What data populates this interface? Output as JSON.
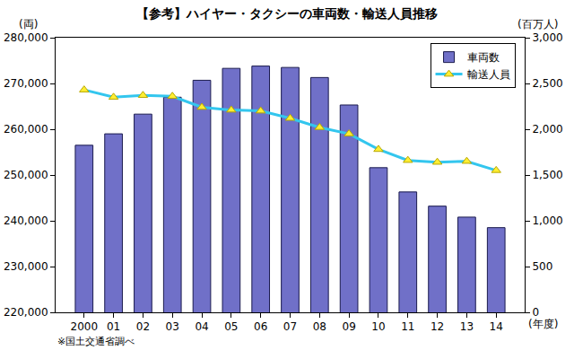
{
  "chart_data": {
    "type": "bar",
    "title": "【参考】ハイヤー・タクシーの車両数・輸送人員推移",
    "ylabel": "(両)",
    "y2label": "(百万人)",
    "xlabel": "(年度)",
    "source": "※国土交通省調べ",
    "categories": [
      "2000",
      "01",
      "02",
      "03",
      "04",
      "05",
      "06",
      "07",
      "08",
      "09",
      "10",
      "11",
      "12",
      "13",
      "14"
    ],
    "series": [
      {
        "name": "車両数",
        "type": "bar",
        "color": "#7070c8",
        "values": [
          256500,
          259000,
          263300,
          267000,
          270700,
          273300,
          273800,
          273500,
          271300,
          265300,
          251600,
          246300,
          243200,
          240800,
          238500
        ]
      },
      {
        "name": "輸送人員",
        "type": "line",
        "axis": "y2",
        "color": "#33c6ee",
        "marker": "triangle-up",
        "values": [
          2430,
          2350,
          2370,
          2360,
          2240,
          2210,
          2200,
          2120,
          2020,
          1950,
          1780,
          1660,
          1640,
          1650,
          1550
        ]
      }
    ],
    "ylim": [
      220000,
      280000
    ],
    "yticks": [
      {
        "value": 220000,
        "label": "220,000"
      },
      {
        "value": 230000,
        "label": "230,000"
      },
      {
        "value": 240000,
        "label": "240,000"
      },
      {
        "value": 250000,
        "label": "250,000"
      },
      {
        "value": 260000,
        "label": "260,000"
      },
      {
        "value": 270000,
        "label": "270,000"
      },
      {
        "value": 280000,
        "label": "280,000"
      }
    ],
    "y2lim": [
      0,
      3000
    ],
    "y2ticks": [
      0,
      500,
      {
        "value": 1000,
        "label": "1,000"
      },
      {
        "value": 1500,
        "label": "1,500"
      },
      {
        "value": 2000,
        "label": "2,000"
      },
      {
        "value": 2500,
        "label": "2,500"
      },
      {
        "value": 3000,
        "label": "3,000"
      }
    ],
    "grid": false,
    "legend": "upper right"
  }
}
